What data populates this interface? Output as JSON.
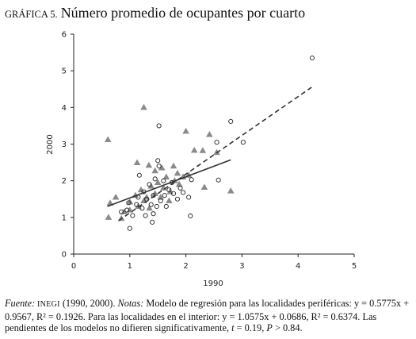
{
  "chart_data": {
    "type": "scatter",
    "title_label": "GRÁFICA 5.",
    "title": "Número promedio de ocupantes por cuarto",
    "x_label": "1990",
    "y_label": "2000",
    "xlim": [
      0,
      5
    ],
    "ylim": [
      0,
      6
    ],
    "xticks": [
      0,
      1,
      2,
      3,
      4,
      5
    ],
    "yticks": [
      0,
      1,
      2,
      3,
      4,
      5,
      6
    ],
    "series": [
      {
        "marker": "triangle",
        "color": "#8a8a8a",
        "x": [
          0.61,
          1.25,
          2.0,
          2.42,
          2.15,
          2.3,
          2.55,
          1.13,
          1.34,
          1.57,
          1.78,
          1.45,
          0.62,
          0.65,
          0.75,
          2.33,
          2.8,
          0.85,
          1.0,
          1.1,
          1.2,
          1.3,
          1.38,
          1.45,
          1.5,
          1.6,
          1.65,
          1.72,
          1.8,
          1.88,
          1.95,
          1.15,
          1.25,
          1.35,
          1.55,
          1.7,
          1.0,
          0.9,
          1.85,
          2.05
        ],
        "values": [
          3.12,
          4.0,
          3.35,
          3.26,
          2.83,
          2.82,
          2.77,
          2.49,
          2.42,
          2.35,
          2.4,
          2.27,
          1.0,
          1.39,
          1.55,
          1.82,
          1.72,
          0.97,
          1.42,
          1.6,
          1.75,
          1.55,
          1.85,
          1.65,
          1.95,
          1.8,
          2.1,
          1.7,
          2.0,
          1.9,
          2.1,
          1.3,
          1.45,
          1.25,
          1.55,
          1.45,
          1.2,
          1.15,
          2.2,
          2.15
        ]
      },
      {
        "marker": "circle",
        "color": "#222222",
        "x": [
          4.25,
          2.8,
          3.02,
          2.55,
          1.52,
          1.5,
          1.52,
          2.58,
          2.1,
          2.08,
          1.0,
          1.4,
          1.17,
          0.85,
          0.95,
          1.05,
          1.12,
          1.22,
          1.3,
          1.38,
          1.42,
          1.48,
          1.55,
          1.62,
          1.7,
          1.78,
          1.85,
          1.9,
          2.05,
          1.35,
          1.45,
          1.6,
          1.25,
          1.15,
          0.98,
          1.42,
          1.65,
          1.28,
          1.75,
          1.95
        ],
        "values": [
          5.35,
          3.62,
          3.05,
          3.05,
          3.5,
          2.55,
          2.4,
          2.02,
          2.03,
          1.04,
          0.7,
          0.87,
          2.15,
          1.15,
          1.2,
          1.05,
          1.35,
          1.25,
          1.5,
          1.35,
          1.1,
          1.3,
          1.45,
          1.6,
          1.75,
          1.65,
          1.5,
          1.8,
          1.55,
          1.9,
          2.05,
          2.0,
          1.7,
          1.55,
          1.4,
          1.6,
          1.3,
          1.05,
          1.95,
          1.68
        ]
      }
    ],
    "lines": [
      {
        "style": "solid",
        "color": "#333333",
        "x": [
          0.6,
          2.8
        ],
        "values": [
          1.3,
          2.57
        ]
      },
      {
        "style": "dashed",
        "color": "#333333",
        "x": [
          0.8,
          4.25
        ],
        "values": [
          0.91,
          4.56
        ]
      }
    ],
    "footnote": [
      "Fuente:",
      " INEGI",
      " (1990, 2000). ",
      "Notas:",
      " Modelo de regresión para las localidades periféricas: y = 0.5775x + 0.9567, R² = 0.1926. Para las localidades en el interior: y = 1.0575x + 0.0686, R² = 0.6374. Las pendientes de los modelos no difieren significativamente, ",
      "t",
      " = 0.19, ",
      "P",
      " > 0.84."
    ]
  }
}
